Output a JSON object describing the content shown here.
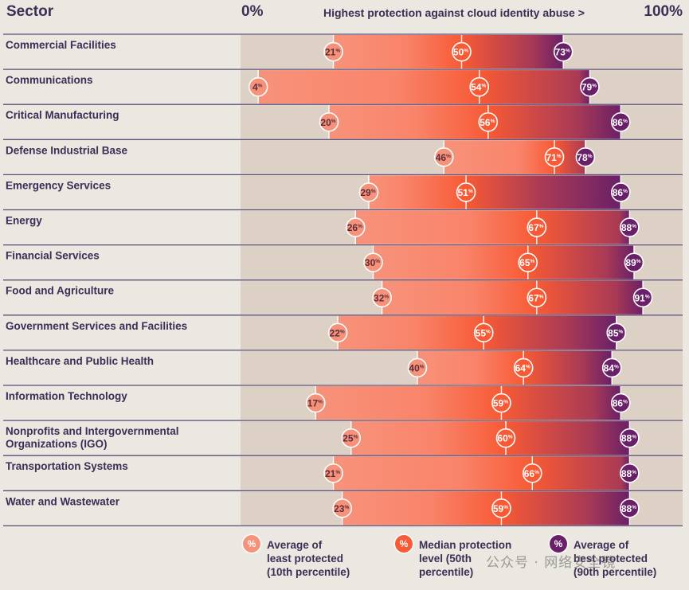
{
  "header": {
    "sector_label": "Sector",
    "axis_min_label": "0%",
    "axis_max_label": "100%",
    "axis_title": "Highest protection against cloud identity abuse >"
  },
  "legend": [
    {
      "badge": "%",
      "label": "Average of\nleast protected\n(10th percentile)",
      "color": "#f7927a"
    },
    {
      "badge": "%",
      "label": "Median protection\nlevel (50th\npercentile)",
      "color": "#f75a35"
    },
    {
      "badge": "%",
      "label": "Average of\nbest protected\n(90th percentile)",
      "color": "#6a2068"
    }
  ],
  "watermark": "公众号 · 网络安全镜",
  "colors": {
    "background": "#ebe7e1",
    "track": "#ddd1c6",
    "least": "#f7927a",
    "median": "#f75a35",
    "best": "#6a2068",
    "text": "#3b2f56"
  },
  "chart_data": {
    "type": "range",
    "xlim": [
      0,
      100
    ],
    "series_names": [
      "Average of least protected (10th percentile)",
      "Median protection level (50th percentile)",
      "Average of best protected (90th percentile)"
    ],
    "rows": [
      {
        "sector": [
          "Commercial Facilities"
        ],
        "p10": 21,
        "p50": 50,
        "p90": 73
      },
      {
        "sector": [
          "Communications"
        ],
        "p10": 4,
        "p50": 54,
        "p90": 79
      },
      {
        "sector": [
          "Critical Manufacturing"
        ],
        "p10": 20,
        "p50": 56,
        "p90": 86
      },
      {
        "sector": [
          "Defense Industrial Base"
        ],
        "p10": 46,
        "p50": 71,
        "p90": 78
      },
      {
        "sector": [
          "Emergency Services"
        ],
        "p10": 29,
        "p50": 51,
        "p90": 86
      },
      {
        "sector": [
          "Energy"
        ],
        "p10": 26,
        "p50": 67,
        "p90": 88
      },
      {
        "sector": [
          "Financial Services"
        ],
        "p10": 30,
        "p50": 65,
        "p90": 89
      },
      {
        "sector": [
          "Food and Agriculture"
        ],
        "p10": 32,
        "p50": 67,
        "p90": 91
      },
      {
        "sector": [
          "Government Services and Facilities"
        ],
        "p10": 22,
        "p50": 55,
        "p90": 85
      },
      {
        "sector": [
          "Healthcare and Public Health"
        ],
        "p10": 40,
        "p50": 64,
        "p90": 84
      },
      {
        "sector": [
          "Information Technology"
        ],
        "p10": 17,
        "p50": 59,
        "p90": 86
      },
      {
        "sector": [
          "Nonprofits and Intergovernmental",
          "Organizations (IGO)"
        ],
        "p10": 25,
        "p50": 60,
        "p90": 88
      },
      {
        "sector": [
          "Transportation Systems"
        ],
        "p10": 21,
        "p50": 66,
        "p90": 88
      },
      {
        "sector": [
          "Water and Wastewater"
        ],
        "p10": 23,
        "p50": 59,
        "p90": 88
      }
    ]
  }
}
